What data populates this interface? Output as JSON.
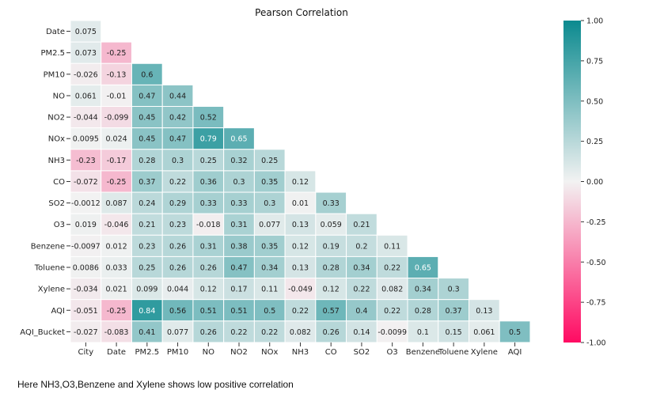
{
  "chart_data": {
    "type": "heatmap",
    "title": "Pearson Correlation",
    "row_labels": [
      "Date",
      "PM2.5",
      "PM10",
      "NO",
      "NO2",
      "NOx",
      "NH3",
      "CO",
      "SO2",
      "O3",
      "Benzene",
      "Toluene",
      "Xylene",
      "AQI",
      "AQI_Bucket"
    ],
    "col_labels": [
      "City",
      "Date",
      "PM2.5",
      "PM10",
      "NO",
      "NO2",
      "NOx",
      "NH3",
      "CO",
      "SO2",
      "O3",
      "Benzene",
      "Toluene",
      "Xylene",
      "AQI"
    ],
    "values": [
      [
        "0.075"
      ],
      [
        "0.073",
        "-0.25"
      ],
      [
        "-0.026",
        "-0.13",
        "0.6"
      ],
      [
        "0.061",
        "-0.01",
        "0.47",
        "0.44"
      ],
      [
        "-0.044",
        "-0.099",
        "0.45",
        "0.42",
        "0.52"
      ],
      [
        "0.0095",
        "0.024",
        "0.45",
        "0.47",
        "0.79",
        "0.65"
      ],
      [
        "-0.23",
        "-0.17",
        "0.28",
        "0.3",
        "0.25",
        "0.32",
        "0.25"
      ],
      [
        "-0.072",
        "-0.25",
        "0.37",
        "0.22",
        "0.36",
        "0.3",
        "0.35",
        "0.12"
      ],
      [
        "-0.0012",
        "0.087",
        "0.24",
        "0.29",
        "0.33",
        "0.33",
        "0.3",
        "0.01",
        "0.33"
      ],
      [
        "0.019",
        "-0.046",
        "0.21",
        "0.23",
        "-0.018",
        "0.31",
        "0.077",
        "0.13",
        "0.059",
        "0.21"
      ],
      [
        "-0.0097",
        "0.012",
        "0.23",
        "0.26",
        "0.31",
        "0.38",
        "0.35",
        "0.12",
        "0.19",
        "0.2",
        "0.11"
      ],
      [
        "0.0086",
        "0.033",
        "0.25",
        "0.26",
        "0.26",
        "0.47",
        "0.34",
        "0.13",
        "0.28",
        "0.34",
        "0.22",
        "0.65"
      ],
      [
        "-0.034",
        "0.021",
        "0.099",
        "0.044",
        "0.12",
        "0.17",
        "0.11",
        "-0.049",
        "0.12",
        "0.22",
        "0.082",
        "0.34",
        "0.3"
      ],
      [
        "-0.051",
        "-0.25",
        "0.84",
        "0.56",
        "0.51",
        "0.51",
        "0.5",
        "0.22",
        "0.57",
        "0.4",
        "0.22",
        "0.28",
        "0.37",
        "0.13"
      ],
      [
        "-0.027",
        "-0.083",
        "0.41",
        "0.077",
        "0.26",
        "0.22",
        "0.22",
        "0.082",
        "0.26",
        "0.14",
        "-0.0099",
        "0.1",
        "0.15",
        "0.061",
        "0.5"
      ]
    ],
    "colorbar": {
      "range": [
        -1.0,
        1.0
      ],
      "ticks": [
        "1.00",
        "0.75",
        "0.50",
        "0.25",
        "0.00",
        "-0.25",
        "-0.50",
        "-0.75",
        "-1.00"
      ],
      "colors": {
        "negative": "#ff0a62",
        "zero": "#f2f2f2",
        "positive": "#0b8a8f"
      }
    },
    "grid": false,
    "legend": "colorbar-right"
  },
  "caption": "Here NH3,O3,Benzene and Xylene shows low positive correlation"
}
